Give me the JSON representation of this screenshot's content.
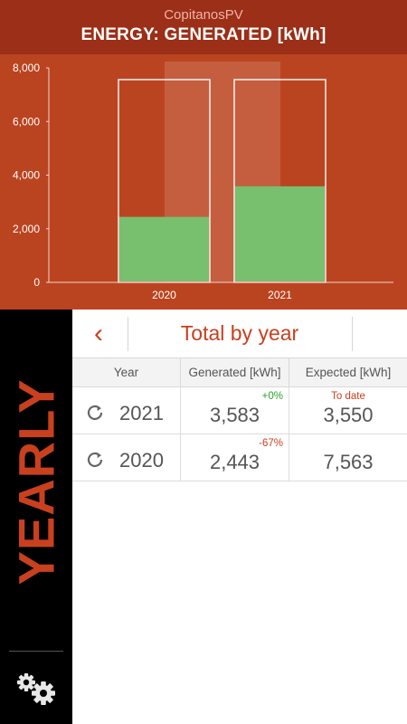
{
  "header": {
    "app_name": "CopitanosPV",
    "title": "ENERGY: GENERATED [kWh]"
  },
  "colors": {
    "header_bg": "#9b2f17",
    "chart_bg": "#bb4420",
    "generated_bar": "#78bf6e",
    "accent": "#c9401f",
    "positive": "#2aa52a"
  },
  "chart_data": {
    "type": "bar",
    "categories": [
      "2020",
      "2021"
    ],
    "series": [
      {
        "values": [
          7563,
          7563
        ]
      },
      {
        "values": [
          2443,
          3583
        ]
      }
    ],
    "ylim": [
      0,
      8000
    ],
    "yticks": [
      "0",
      "2,000",
      "4,000",
      "6,000",
      "8,000"
    ],
    "highlighted_category": "2021"
  },
  "sidebar": {
    "label": "YEARLY",
    "settings_icon": "gears-icon"
  },
  "toolbar": {
    "back_icon": "chevron-left-icon",
    "title": "Total by year"
  },
  "table": {
    "columns": [
      "Year",
      "Generated [kWh]",
      "Expected [kWh]"
    ],
    "rows": [
      {
        "year": "2021",
        "generated": "3,583",
        "change": "+0%",
        "change_type": "positive",
        "expected_note": "To date",
        "expected": "3,550",
        "expected_highlight": true
      },
      {
        "year": "2020",
        "generated": "2,443",
        "change": "-67%",
        "change_type": "negative",
        "expected_note": "",
        "expected": "7,563",
        "expected_highlight": false
      }
    ]
  }
}
